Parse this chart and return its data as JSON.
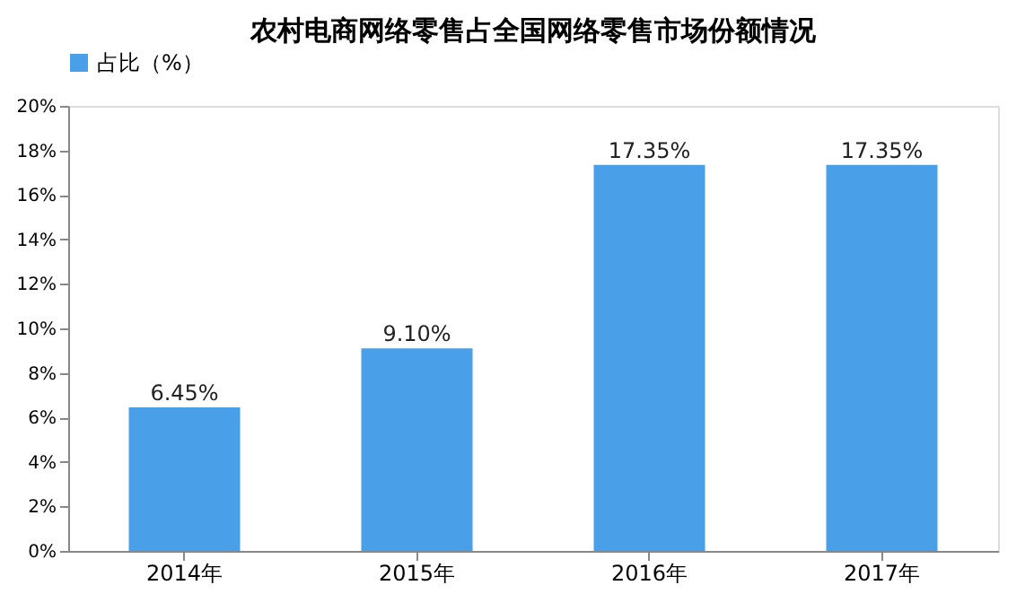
{
  "chart_data": {
    "type": "bar",
    "title": "农村电商网络零售占全国网络零售市场份额情况",
    "categories": [
      "2014年",
      "2015年",
      "2016年",
      "2017年"
    ],
    "series": [
      {
        "name": "占比（%）",
        "color": "#4a9fe9",
        "values": [
          6.45,
          9.1,
          17.35,
          17.35
        ],
        "value_labels": [
          "6.45%",
          "9.10%",
          "17.35%",
          "17.35%"
        ]
      }
    ],
    "ylim": [
      0,
      20
    ],
    "yticks": [
      {
        "value": 0,
        "label": "0%"
      },
      {
        "value": 2,
        "label": "2%"
      },
      {
        "value": 4,
        "label": "4%"
      },
      {
        "value": 6,
        "label": "6%"
      },
      {
        "value": 8,
        "label": "8%"
      },
      {
        "value": 10,
        "label": "10%"
      },
      {
        "value": 12,
        "label": "12%"
      },
      {
        "value": 14,
        "label": "14%"
      },
      {
        "value": 16,
        "label": "16%"
      },
      {
        "value": 18,
        "label": "18%"
      },
      {
        "value": 20,
        "label": "20%"
      }
    ],
    "grid": false,
    "legend": "top"
  }
}
